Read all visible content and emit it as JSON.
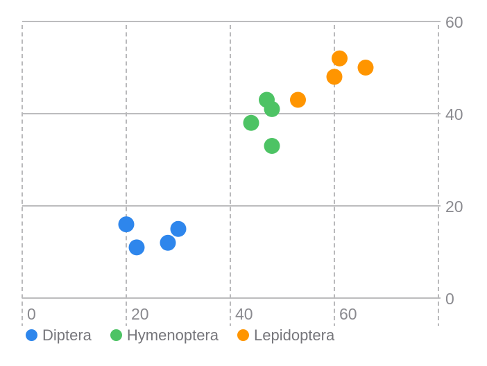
{
  "chart_data": {
    "type": "scatter",
    "title": "",
    "xlabel": "",
    "ylabel": "",
    "xlim": [
      0,
      80
    ],
    "ylim": [
      0,
      60
    ],
    "x_tick_labels": [
      "0",
      "20",
      "40",
      "60"
    ],
    "x_tick_values": [
      0,
      20,
      40,
      60
    ],
    "x_gridline_values": [
      0,
      20,
      40,
      60,
      80
    ],
    "y_tick_labels": [
      "0",
      "20",
      "40",
      "60"
    ],
    "y_tick_values": [
      0,
      20,
      40,
      60
    ],
    "y_axis_side": "right",
    "legend_position": "bottom",
    "grid": {
      "horizontal": "solid",
      "vertical": "dashed"
    },
    "marker_radius": 11.5,
    "series": [
      {
        "name": "Diptera",
        "color": "#2e86ec",
        "points": [
          [
            20,
            16
          ],
          [
            22,
            11
          ],
          [
            28,
            12
          ],
          [
            30,
            15
          ]
        ]
      },
      {
        "name": "Hymenoptera",
        "color": "#4dc364",
        "points": [
          [
            44,
            38
          ],
          [
            47,
            43
          ],
          [
            48,
            41
          ],
          [
            48,
            33
          ]
        ]
      },
      {
        "name": "Lepidoptera",
        "color": "#ff9500",
        "points": [
          [
            53,
            43
          ],
          [
            60,
            48
          ],
          [
            61,
            52
          ],
          [
            66,
            50
          ]
        ]
      }
    ],
    "colors": {
      "grid_solid": "#bcbcbe",
      "grid_dashed": "#b9b9bb",
      "tick_text": "#8a8a8f",
      "legend_text": "#76767b",
      "background": "#ffffff"
    }
  }
}
